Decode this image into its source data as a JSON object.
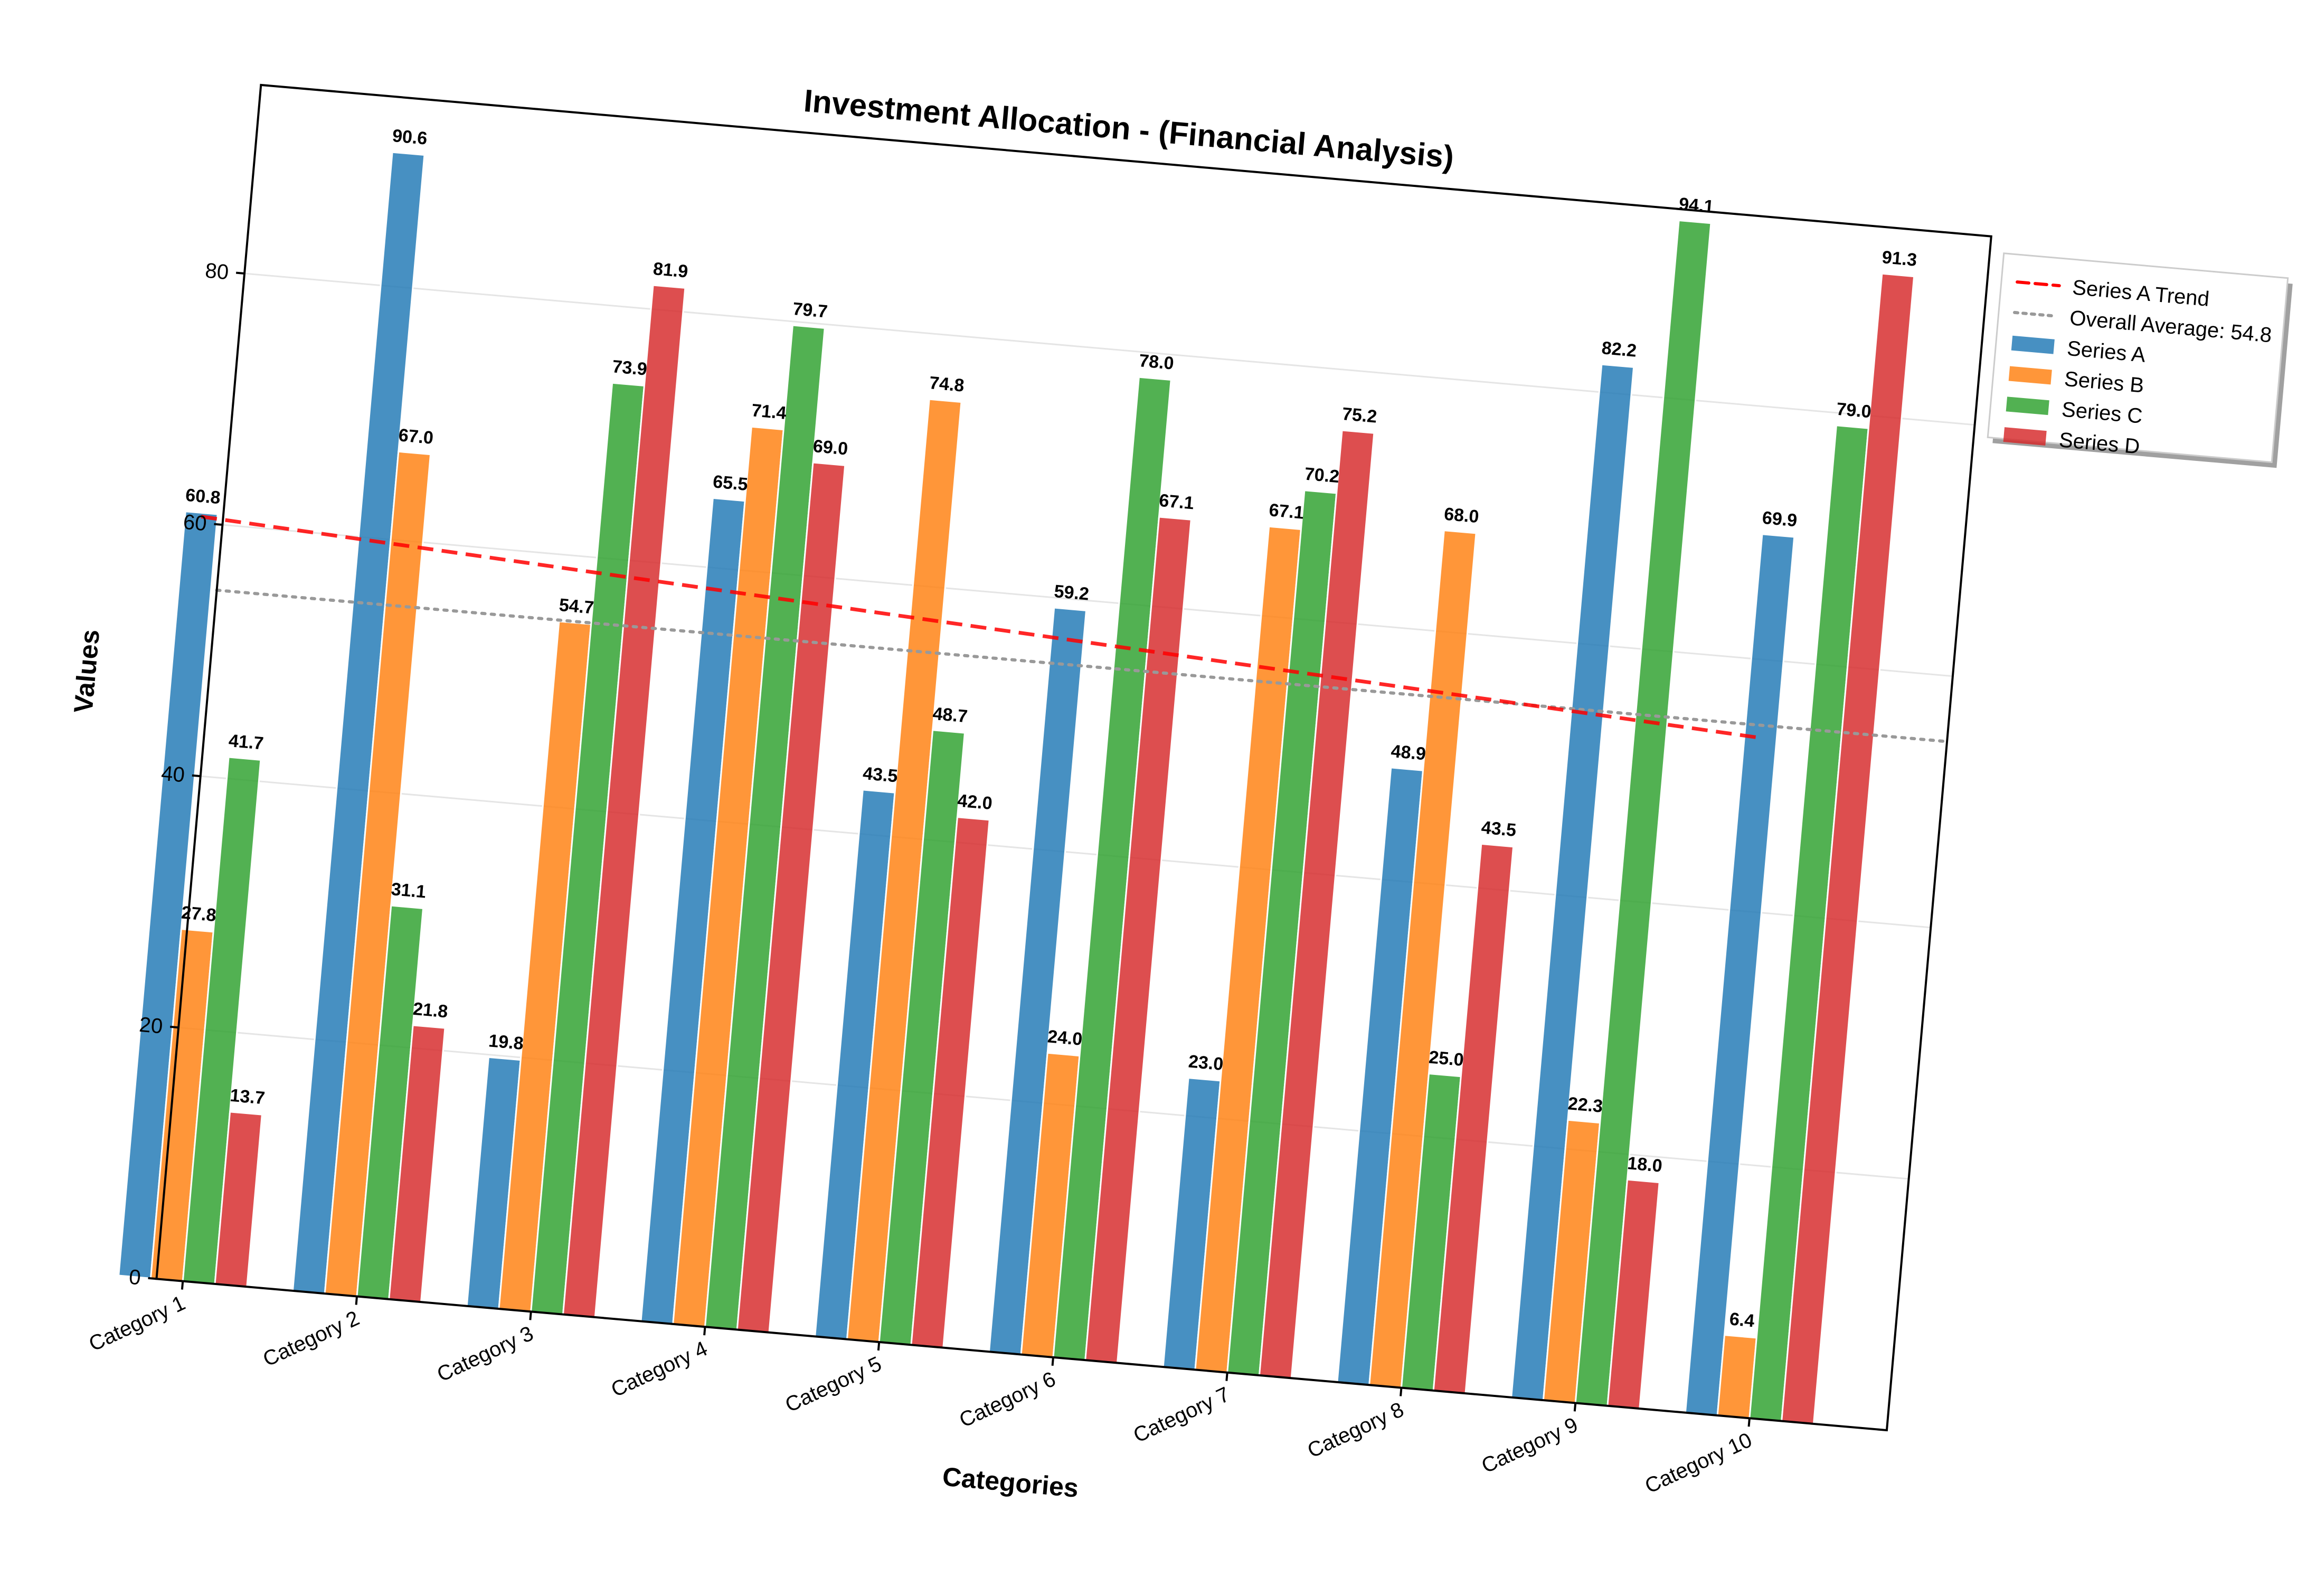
{
  "chart_data": {
    "type": "bar",
    "title": "Investment Allocation - (Financial Analysis)",
    "xlabel": "Categories",
    "ylabel": "Values",
    "ylim": [
      0,
      95
    ],
    "yticks": [
      0,
      20,
      40,
      60,
      80
    ],
    "grid": "horizontal",
    "legend_position": "outside-top-right",
    "categories": [
      "Category 1",
      "Category 2",
      "Category 3",
      "Category 4",
      "Category 5",
      "Category 6",
      "Category 7",
      "Category 8",
      "Category 9",
      "Category 10"
    ],
    "series": [
      {
        "name": "Series A",
        "color": "#1f77b4",
        "values": [
          60.8,
          90.6,
          19.8,
          65.5,
          43.5,
          59.2,
          23.0,
          48.9,
          82.2,
          69.9
        ]
      },
      {
        "name": "Series B",
        "color": "#ff7f0e",
        "values": [
          27.8,
          67.0,
          54.7,
          71.4,
          74.8,
          24.0,
          67.1,
          68.0,
          22.3,
          6.4
        ]
      },
      {
        "name": "Series C",
        "color": "#2ca02c",
        "values": [
          41.7,
          31.1,
          73.9,
          79.7,
          48.7,
          78.0,
          70.2,
          25.0,
          94.1,
          79.0
        ]
      },
      {
        "name": "Series D",
        "color": "#d62728",
        "values": [
          13.7,
          21.8,
          81.9,
          69.0,
          42.0,
          67.1,
          75.2,
          43.5,
          18.0,
          91.3
        ]
      }
    ],
    "trend_line": {
      "name": "Series A Trend",
      "color": "#ff0000",
      "style": "dashed",
      "start_value": 60.5,
      "end_value": 53.8
    },
    "average_line": {
      "name": "Overall Average: 54.8",
      "value": 54.8,
      "color": "#999999",
      "style": "dotted"
    }
  }
}
